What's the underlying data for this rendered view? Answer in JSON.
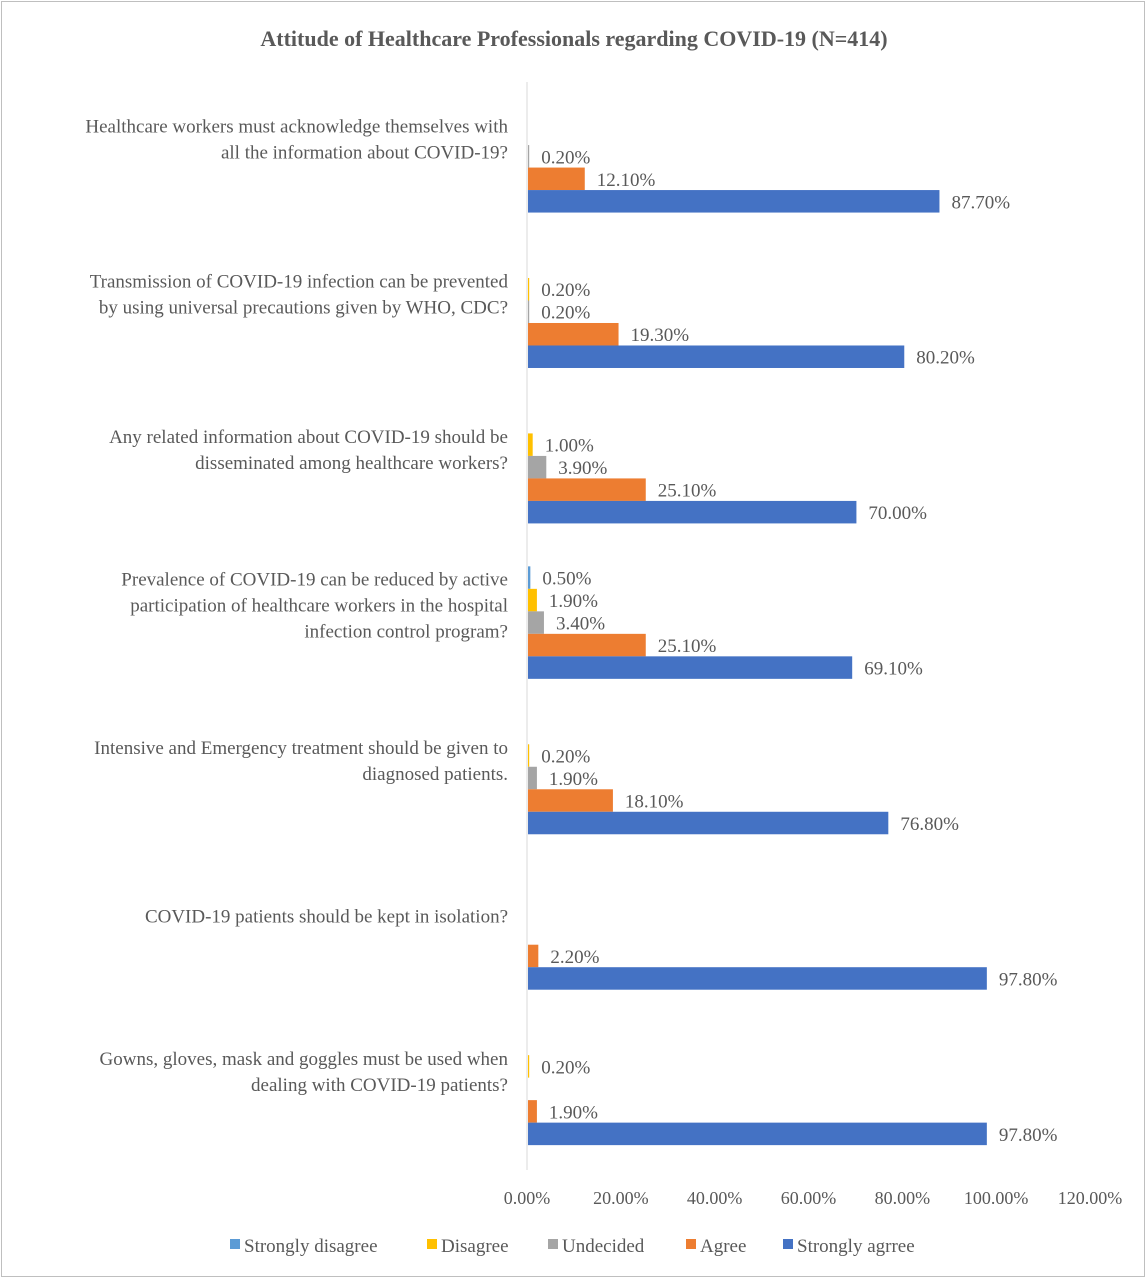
{
  "chart_data": {
    "type": "bar",
    "orientation": "horizontal",
    "title": "Attitude of Healthcare Professionals regarding COVID-19 (N=414)",
    "xlabel": "",
    "ylabel": "",
    "xlim": [
      0,
      120
    ],
    "x_ticks": [
      "0.00%",
      "20.00%",
      "40.00%",
      "60.00%",
      "80.00%",
      "100.00%",
      "120.00%"
    ],
    "grid": false,
    "legend_position": "bottom",
    "categories": [
      [
        "Healthcare workers must acknowledge themselves with",
        "all the information about COVID-19?"
      ],
      [
        "Transmission of COVID-19 infection can be prevented",
        "by using universal precautions given by WHO, CDC?"
      ],
      [
        "Any related information about COVID-19 should be",
        "disseminated among healthcare workers?"
      ],
      [
        "Prevalence of COVID-19 can be reduced by active",
        "participation of healthcare workers in the hospital",
        "infection control program?"
      ],
      [
        "Intensive and Emergency treatment should be given to",
        "diagnosed patients."
      ],
      [
        "COVID-19 patients should be kept in isolation?"
      ],
      [
        "Gowns, gloves, mask and goggles must be used when",
        "dealing with COVID-19 patients?"
      ]
    ],
    "series": [
      {
        "name": "Strongly disagree",
        "color": "#5b9bd5",
        "values": [
          null,
          null,
          null,
          0.5,
          null,
          null,
          null
        ],
        "labels": [
          "",
          "",
          "",
          "0.50%",
          "",
          "",
          ""
        ]
      },
      {
        "name": "Disagree",
        "color": "#ffc000",
        "values": [
          null,
          0.2,
          1.0,
          1.9,
          0.2,
          null,
          0.2
        ],
        "labels": [
          "",
          "0.20%",
          "1.00%",
          "1.90%",
          "0.20%",
          "",
          "0.20%"
        ]
      },
      {
        "name": "Undecided",
        "color": "#a5a5a5",
        "values": [
          0.2,
          0.2,
          3.9,
          3.4,
          1.9,
          null,
          null
        ],
        "labels": [
          "0.20%",
          "0.20%",
          "3.90%",
          "3.40%",
          "1.90%",
          "",
          ""
        ]
      },
      {
        "name": "Agree",
        "color": "#ed7d31",
        "values": [
          12.1,
          19.3,
          25.1,
          25.1,
          18.1,
          2.2,
          1.9
        ],
        "labels": [
          "12.10%",
          "19.30%",
          "25.10%",
          "25.10%",
          "18.10%",
          "2.20%",
          "1.90%"
        ]
      },
      {
        "name": "Strongly agrree",
        "color": "#4472c4",
        "values": [
          87.7,
          80.2,
          70.0,
          69.1,
          76.8,
          97.8,
          97.8
        ],
        "labels": [
          "87.70%",
          "80.20%",
          "70.00%",
          "69.10%",
          "76.80%",
          "97.80%",
          "97.80%"
        ]
      }
    ]
  }
}
